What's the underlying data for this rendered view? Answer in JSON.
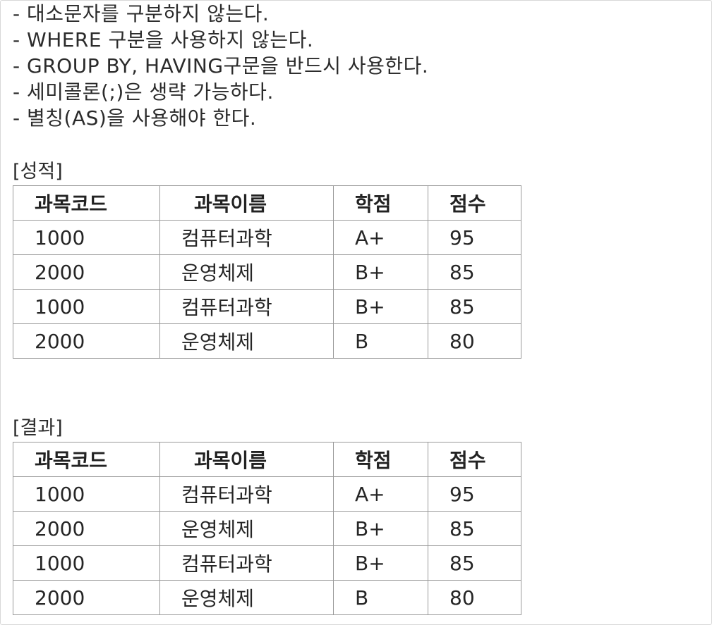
{
  "bullets": [
    "- 대소문자를 구분하지 않는다.",
    "- WHERE 구분을 사용하지 않는다.",
    "- GROUP BY, HAVING구문을 반드시 사용한다.",
    "- 세미콜론(;)은 생략 가능하다.",
    "- 별칭(AS)을 사용해야 한다."
  ],
  "tables": [
    {
      "caption": "[성적]",
      "headers": [
        "과목코드",
        "과목이름",
        "학점",
        "점수"
      ],
      "rows": [
        [
          "1000",
          "컴퓨터과학",
          "A+",
          "95"
        ],
        [
          "2000",
          "운영체제",
          "B+",
          "85"
        ],
        [
          "1000",
          "컴퓨터과학",
          "B+",
          "85"
        ],
        [
          "2000",
          "운영체제",
          "B",
          "80"
        ]
      ]
    },
    {
      "caption": "[결과]",
      "headers": [
        "과목코드",
        "과목이름",
        "학점",
        "점수"
      ],
      "rows": [
        [
          "1000",
          "컴퓨터과학",
          "A+",
          "95"
        ],
        [
          "2000",
          "운영체제",
          "B+",
          "85"
        ],
        [
          "1000",
          "컴퓨터과학",
          "B+",
          "85"
        ],
        [
          "2000",
          "운영체제",
          "B",
          "80"
        ]
      ]
    }
  ]
}
